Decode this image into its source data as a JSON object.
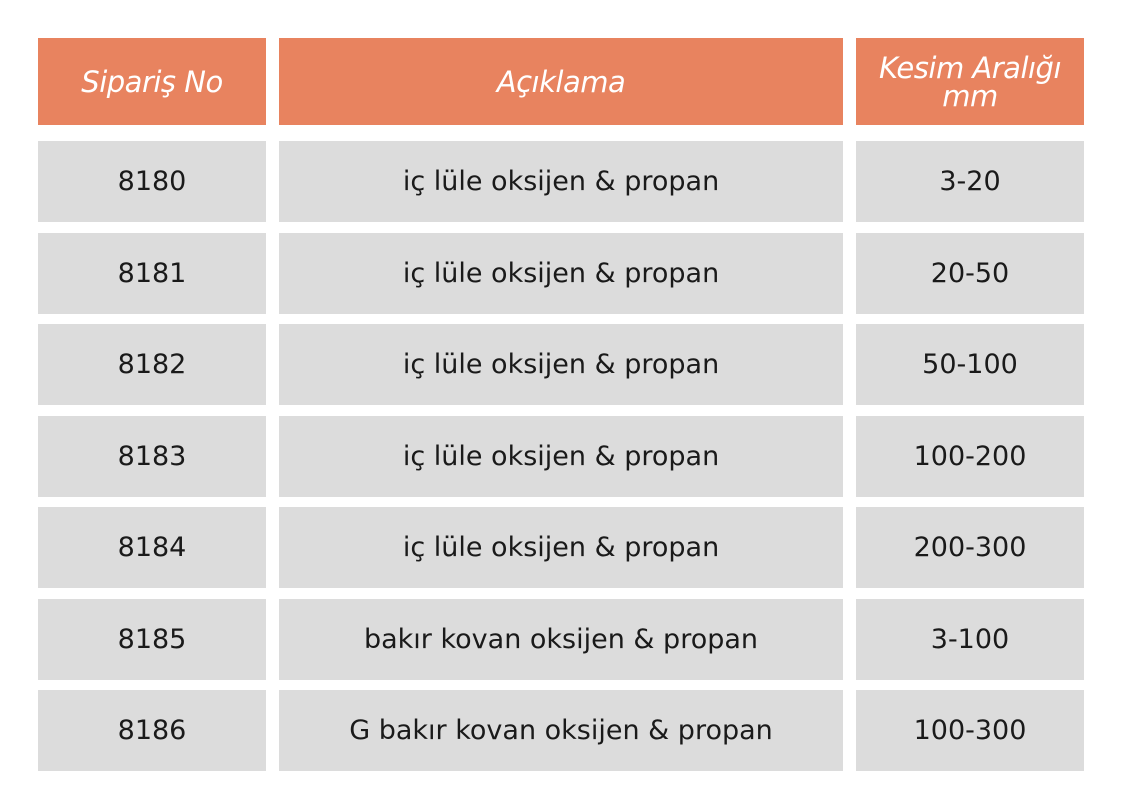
{
  "colors": {
    "header_bg": "#E8835F",
    "row_bg": "#DCDCDC",
    "header_text": "#FFFFFF"
  },
  "headers": {
    "order_no": "Sipariş No",
    "description": "Açıklama",
    "cut_range_line1": "Kesim Aralığı",
    "cut_range_line2": "mm"
  },
  "rows": [
    {
      "order_no": "8180",
      "description": "iç lüle oksijen & propan",
      "range": "3-20"
    },
    {
      "order_no": "8181",
      "description": "iç lüle oksijen & propan",
      "range": "20-50"
    },
    {
      "order_no": "8182",
      "description": "iç lüle oksijen & propan",
      "range": "50-100"
    },
    {
      "order_no": "8183",
      "description": "iç lüle oksijen & propan",
      "range": "100-200"
    },
    {
      "order_no": "8184",
      "description": "iç lüle oksijen & propan",
      "range": "200-300"
    },
    {
      "order_no": "8185",
      "description": "bakır kovan oksijen & propan",
      "range": "3-100"
    },
    {
      "order_no": "8186",
      "description": "G bakır kovan oksijen & propan",
      "range": "100-300"
    }
  ]
}
